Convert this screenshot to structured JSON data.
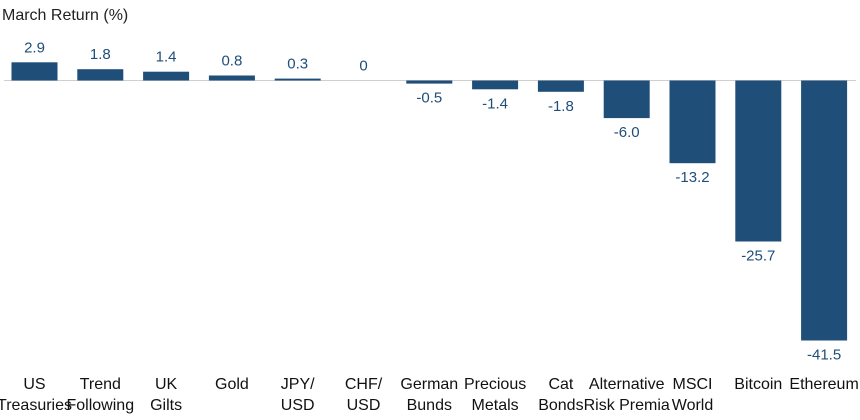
{
  "chart_data": {
    "type": "bar",
    "ylabel": "March Return (%)",
    "categories": [
      [
        "US",
        "Treasuries"
      ],
      [
        "Trend",
        "Following"
      ],
      [
        "UK",
        "Gilts"
      ],
      [
        "Gold"
      ],
      [
        "JPY/",
        "USD"
      ],
      [
        "CHF/",
        "USD"
      ],
      [
        "German",
        "Bunds"
      ],
      [
        "Precious",
        "Metals"
      ],
      [
        "Cat",
        "Bonds"
      ],
      [
        "Alternative",
        "Risk Premia"
      ],
      [
        "MSCI",
        "World"
      ],
      [
        "Bitcoin"
      ],
      [
        "Ethereum"
      ]
    ],
    "values": [
      2.9,
      1.8,
      1.4,
      0.8,
      0.3,
      0,
      -0.5,
      -1.4,
      -1.8,
      -6.0,
      -13.2,
      -25.7,
      -41.5
    ],
    "value_labels": [
      "2.9",
      "1.8",
      "1.4",
      "0.8",
      "0.3",
      "0",
      "-0.5",
      "-1.4",
      "-1.8",
      "-6.0",
      "-13.2",
      "-25.7",
      "-41.5"
    ],
    "ylim": [
      -41.5,
      2.9
    ],
    "grid": false,
    "legend": "none",
    "bar_color": "#1f4e79",
    "label_color": "#1f4e79",
    "axis_color": "#cfcfcf"
  }
}
